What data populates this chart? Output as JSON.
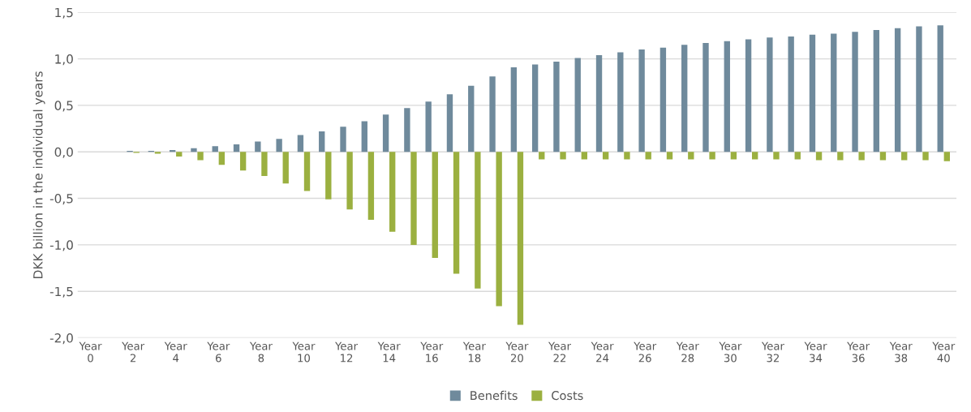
{
  "chart_data": {
    "type": "bar",
    "ylabel": "DKK billion in the individual years",
    "categories": [
      "Year\n0",
      null,
      "Year\n2",
      null,
      "Year\n4",
      null,
      "Year\n6",
      null,
      "Year\n8",
      null,
      "Year\n10",
      null,
      "Year\n12",
      null,
      "Year\n14",
      null,
      "Year\n16",
      null,
      "Year\n18",
      null,
      "Year\n20",
      null,
      "Year\n22",
      null,
      "Year\n24",
      null,
      "Year\n26",
      null,
      "Year\n28",
      null,
      "Year\n30",
      null,
      "Year\n32",
      null,
      "Year\n34",
      null,
      "Year\n36",
      null,
      "Year\n38",
      null,
      "Year\n40"
    ],
    "series": [
      {
        "name": "Benefits",
        "color": "#6f8a9c",
        "values": [
          0,
          0,
          0.01,
          0.01,
          0.02,
          0.04,
          0.06,
          0.08,
          0.11,
          0.14,
          0.18,
          0.22,
          0.27,
          0.33,
          0.4,
          0.47,
          0.54,
          0.62,
          0.71,
          0.81,
          0.91,
          0.94,
          0.97,
          1.01,
          1.04,
          1.07,
          1.1,
          1.12,
          1.15,
          1.17,
          1.19,
          1.21,
          1.23,
          1.24,
          1.26,
          1.27,
          1.29,
          1.31,
          1.33,
          1.35,
          1.36
        ]
      },
      {
        "name": "Costs",
        "color": "#9bb040",
        "values": [
          0,
          0,
          -0.01,
          -0.02,
          -0.05,
          -0.09,
          -0.14,
          -0.2,
          -0.26,
          -0.34,
          -0.42,
          -0.51,
          -0.62,
          -0.73,
          -0.86,
          -1.0,
          -1.14,
          -1.31,
          -1.47,
          -1.66,
          -1.86,
          -0.08,
          -0.08,
          -0.08,
          -0.08,
          -0.08,
          -0.08,
          -0.08,
          -0.08,
          -0.08,
          -0.08,
          -0.08,
          -0.08,
          -0.08,
          -0.09,
          -0.09,
          -0.09,
          -0.09,
          -0.09,
          -0.09,
          -0.1
        ]
      }
    ],
    "ylim": [
      -2.0,
      1.5
    ],
    "yticks": [
      {
        "value": -2.0,
        "label": "-2,0"
      },
      {
        "value": -1.5,
        "label": "-1,5"
      },
      {
        "value": -1.0,
        "label": "-1,0"
      },
      {
        "value": -0.5,
        "label": "-0,5"
      },
      {
        "value": 0.0,
        "label": "0,0"
      },
      {
        "value": 0.5,
        "label": "0,5"
      },
      {
        "value": 1.0,
        "label": "1,0"
      },
      {
        "value": 1.5,
        "label": "1,5"
      }
    ],
    "grid": "y",
    "legend": "bottom"
  }
}
